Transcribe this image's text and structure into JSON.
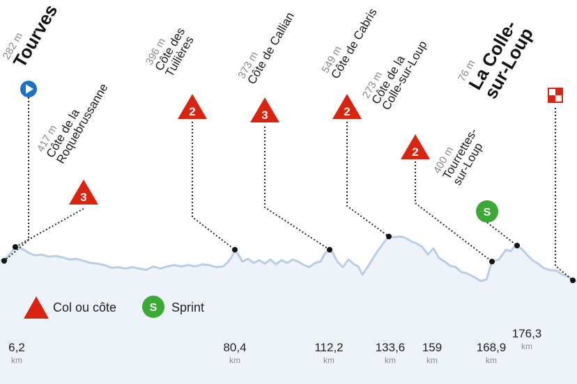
{
  "chart_data": {
    "type": "area",
    "colors": {
      "fill": "#eef3fa",
      "line": "#b7cde8",
      "climb": "#d9230f",
      "sprint": "#3aaa35",
      "start": "#1e6fc5"
    },
    "start": {
      "altitude": "282 m",
      "name": "Tourves"
    },
    "finish": {
      "altitude": "76 m",
      "name_line1": "La Colle-",
      "name_line2": "sur-Loup"
    },
    "climbs": [
      {
        "cat": "3",
        "altitude": "417 m",
        "line1": "Côte de la",
        "line2": "Roquebrussanne"
      },
      {
        "cat": "2",
        "altitude": "396 m",
        "line1": "Côte des",
        "line2": "Tuilières"
      },
      {
        "cat": "3",
        "altitude": "373 m",
        "line1": "Côte de Callian",
        "line2": ""
      },
      {
        "cat": "2",
        "altitude": "549 m",
        "line1": "Côte de Cabris",
        "line2": ""
      },
      {
        "cat": "2",
        "altitude": "273 m",
        "line1": "Côte de la",
        "line2": "Colle-sur-Loup"
      }
    ],
    "sprint": {
      "label": "S",
      "altitude": "400 m",
      "line1": "Tourrettes-",
      "line2": "sur-Loup"
    },
    "km_markers": [
      {
        "value": "6,2",
        "unit": "km"
      },
      {
        "value": "80,4",
        "unit": "km"
      },
      {
        "value": "112,2",
        "unit": "km"
      },
      {
        "value": "133,6",
        "unit": "km"
      },
      {
        "value": "159",
        "unit": "km"
      },
      {
        "value": "168,9",
        "unit": "km"
      },
      {
        "value": "176,3",
        "unit": "km"
      }
    ],
    "legend": [
      {
        "symbol": "triangle",
        "label": "Col ou côte"
      },
      {
        "symbol": "S",
        "label": "Sprint"
      }
    ]
  }
}
